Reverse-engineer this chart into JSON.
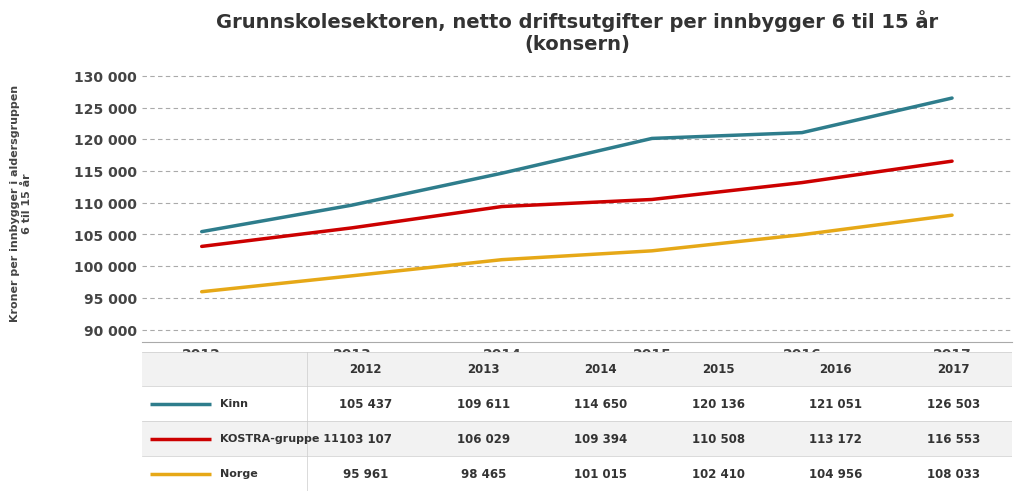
{
  "title": "Grunnskolesektoren, netto driftsutgifter per innbygger 6 til 15 år\n(konsern)",
  "ylabel": "Kroner per innbygger i aldersgruppen\n6 til 15 år",
  "years": [
    2012,
    2013,
    2014,
    2015,
    2016,
    2017
  ],
  "series": [
    {
      "label": "Kinn",
      "color": "#2e7d8c",
      "values": [
        105437,
        109611,
        114650,
        120136,
        121051,
        126503
      ]
    },
    {
      "label": "KOSTRA-gruppe 11",
      "color": "#cc0000",
      "values": [
        103107,
        106029,
        109394,
        110508,
        113172,
        116553
      ]
    },
    {
      "label": "Norge",
      "color": "#e6a817",
      "values": [
        95961,
        98465,
        101015,
        102410,
        104956,
        108033
      ]
    }
  ],
  "yticks": [
    90000,
    95000,
    100000,
    105000,
    110000,
    115000,
    120000,
    125000,
    130000
  ],
  "ylim": [
    88000,
    132000
  ],
  "table_values": [
    [
      "105 437",
      "109 611",
      "114 650",
      "120 136",
      "121 051",
      "126 503"
    ],
    [
      "103 107",
      "106 029",
      "109 394",
      "110 508",
      "113 172",
      "116 553"
    ],
    [
      "95 961",
      "98 465",
      "101 015",
      "102 410",
      "104 956",
      "108 033"
    ]
  ],
  "background_color": "#ffffff",
  "grid_color": "#aaaaaa",
  "title_fontsize": 14,
  "tick_fontsize": 10,
  "line_width": 2.5
}
